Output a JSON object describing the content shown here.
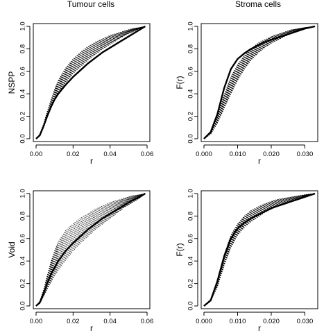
{
  "column_titles": [
    "Tumour cells",
    "Stroma cells"
  ],
  "chart_data": [
    {
      "type": "line",
      "title": "Tumour cells",
      "xlabel": "r",
      "ylabel": "NSPP",
      "xlim": [
        0,
        0.06
      ],
      "ylim": [
        0,
        1
      ],
      "xticks": [
        0.0,
        0.02,
        0.04,
        0.06
      ],
      "xtick_labels": [
        "0.00",
        "0.02",
        "0.04",
        "0.06"
      ],
      "yticks": [
        0.0,
        0.2,
        0.4,
        0.6,
        0.8,
        1.0
      ],
      "ytick_labels": [
        "0.0",
        "0.2",
        "0.4",
        "0.6",
        "0.8",
        "1.0"
      ],
      "grid": false,
      "legend": "none",
      "series": [
        {
          "role": "observed",
          "x": [
            0.0,
            0.002,
            0.004,
            0.006,
            0.008,
            0.01,
            0.012,
            0.016,
            0.02,
            0.024,
            0.028,
            0.032,
            0.036,
            0.04,
            0.044,
            0.048,
            0.052,
            0.056,
            0.059
          ],
          "y": [
            0.0,
            0.03,
            0.11,
            0.2,
            0.28,
            0.35,
            0.4,
            0.48,
            0.55,
            0.61,
            0.67,
            0.72,
            0.77,
            0.81,
            0.85,
            0.89,
            0.93,
            0.97,
            1.0
          ]
        },
        {
          "role": "simulation-envelope",
          "x": [
            0.0,
            0.002,
            0.004,
            0.006,
            0.008,
            0.01,
            0.012,
            0.016,
            0.02,
            0.024,
            0.028,
            0.032,
            0.036,
            0.04,
            0.044,
            0.048,
            0.052,
            0.056,
            0.059
          ],
          "y_lower": [
            0.0,
            0.03,
            0.1,
            0.19,
            0.27,
            0.35,
            0.41,
            0.5,
            0.58,
            0.64,
            0.7,
            0.75,
            0.8,
            0.84,
            0.88,
            0.92,
            0.95,
            0.98,
            1.0
          ],
          "y_upper": [
            0.0,
            0.04,
            0.13,
            0.24,
            0.34,
            0.44,
            0.52,
            0.63,
            0.71,
            0.77,
            0.82,
            0.86,
            0.89,
            0.92,
            0.94,
            0.96,
            0.98,
            0.99,
            1.0
          ],
          "count": 19
        }
      ]
    },
    {
      "type": "line",
      "title": "Stroma cells",
      "xlabel": "r",
      "ylabel": "F(r)",
      "xlim": [
        0,
        0.033
      ],
      "ylim": [
        0,
        1
      ],
      "xticks": [
        0.0,
        0.01,
        0.02,
        0.03
      ],
      "xtick_labels": [
        "0.000",
        "0.010",
        "0.020",
        "0.030"
      ],
      "yticks": [
        0.0,
        0.2,
        0.4,
        0.6,
        0.8,
        1.0
      ],
      "ytick_labels": [
        "0.0",
        "0.2",
        "0.4",
        "0.6",
        "0.8",
        "1.0"
      ],
      "grid": false,
      "legend": "none",
      "series": [
        {
          "role": "observed",
          "x": [
            0.0,
            0.002,
            0.004,
            0.006,
            0.008,
            0.01,
            0.012,
            0.014,
            0.016,
            0.018,
            0.02,
            0.022,
            0.024,
            0.026,
            0.028,
            0.03,
            0.033
          ],
          "y": [
            0.0,
            0.06,
            0.22,
            0.45,
            0.62,
            0.71,
            0.76,
            0.8,
            0.83,
            0.86,
            0.88,
            0.9,
            0.92,
            0.94,
            0.96,
            0.98,
            1.0
          ]
        },
        {
          "role": "simulation-envelope",
          "x": [
            0.0,
            0.002,
            0.004,
            0.006,
            0.008,
            0.01,
            0.012,
            0.014,
            0.016,
            0.018,
            0.02,
            0.022,
            0.024,
            0.026,
            0.028,
            0.03,
            0.033
          ],
          "y_lower": [
            0.0,
            0.04,
            0.14,
            0.27,
            0.4,
            0.52,
            0.62,
            0.7,
            0.76,
            0.81,
            0.85,
            0.88,
            0.91,
            0.94,
            0.96,
            0.98,
            1.0
          ],
          "y_upper": [
            0.0,
            0.06,
            0.21,
            0.39,
            0.55,
            0.66,
            0.74,
            0.8,
            0.85,
            0.88,
            0.91,
            0.93,
            0.95,
            0.97,
            0.98,
            0.99,
            1.0
          ],
          "count": 19
        }
      ]
    },
    {
      "type": "line",
      "title": "",
      "xlabel": "r",
      "ylabel": "Void",
      "xlim": [
        0,
        0.06
      ],
      "ylim": [
        0,
        1
      ],
      "xticks": [
        0.0,
        0.02,
        0.04,
        0.06
      ],
      "xtick_labels": [
        "0.00",
        "0.02",
        "0.04",
        "0.06"
      ],
      "yticks": [
        0.0,
        0.2,
        0.4,
        0.6,
        0.8,
        1.0
      ],
      "ytick_labels": [
        "0.0",
        "0.2",
        "0.4",
        "0.6",
        "0.8",
        "1.0"
      ],
      "grid": false,
      "legend": "none",
      "series": [
        {
          "role": "observed",
          "x": [
            0.0,
            0.002,
            0.004,
            0.006,
            0.008,
            0.01,
            0.012,
            0.016,
            0.02,
            0.024,
            0.028,
            0.032,
            0.036,
            0.04,
            0.044,
            0.048,
            0.052,
            0.056,
            0.059
          ],
          "y": [
            0.0,
            0.03,
            0.11,
            0.2,
            0.28,
            0.34,
            0.4,
            0.49,
            0.56,
            0.62,
            0.68,
            0.73,
            0.78,
            0.82,
            0.86,
            0.9,
            0.94,
            0.97,
            1.0
          ]
        },
        {
          "role": "simulation-envelope",
          "x": [
            0.0,
            0.002,
            0.004,
            0.006,
            0.008,
            0.01,
            0.012,
            0.016,
            0.02,
            0.024,
            0.028,
            0.032,
            0.036,
            0.04,
            0.044,
            0.048,
            0.052,
            0.056,
            0.059
          ],
          "y_lower": [
            0.0,
            0.02,
            0.08,
            0.15,
            0.21,
            0.27,
            0.32,
            0.41,
            0.49,
            0.56,
            0.62,
            0.68,
            0.73,
            0.78,
            0.83,
            0.88,
            0.92,
            0.96,
            1.0
          ],
          "y_upper": [
            0.0,
            0.04,
            0.14,
            0.27,
            0.39,
            0.49,
            0.57,
            0.67,
            0.73,
            0.78,
            0.82,
            0.86,
            0.89,
            0.92,
            0.94,
            0.96,
            0.98,
            0.99,
            1.0
          ],
          "count": 19
        }
      ]
    },
    {
      "type": "line",
      "title": "",
      "xlabel": "r",
      "ylabel": "F(r)",
      "xlim": [
        0,
        0.033
      ],
      "ylim": [
        0,
        1
      ],
      "xticks": [
        0.0,
        0.01,
        0.02,
        0.03
      ],
      "xtick_labels": [
        "0.000",
        "0.010",
        "0.020",
        "0.030"
      ],
      "yticks": [
        0.0,
        0.2,
        0.4,
        0.6,
        0.8,
        1.0
      ],
      "ytick_labels": [
        "0.0",
        "0.2",
        "0.4",
        "0.6",
        "0.8",
        "1.0"
      ],
      "grid": false,
      "legend": "none",
      "series": [
        {
          "role": "observed",
          "x": [
            0.0,
            0.002,
            0.004,
            0.006,
            0.008,
            0.01,
            0.012,
            0.014,
            0.016,
            0.018,
            0.02,
            0.022,
            0.024,
            0.026,
            0.028,
            0.03,
            0.033
          ],
          "y": [
            0.0,
            0.05,
            0.22,
            0.44,
            0.6,
            0.69,
            0.74,
            0.78,
            0.81,
            0.84,
            0.87,
            0.89,
            0.91,
            0.93,
            0.95,
            0.97,
            1.0
          ]
        },
        {
          "role": "simulation-envelope",
          "x": [
            0.0,
            0.002,
            0.004,
            0.006,
            0.008,
            0.01,
            0.012,
            0.014,
            0.016,
            0.018,
            0.02,
            0.022,
            0.024,
            0.026,
            0.028,
            0.03,
            0.033
          ],
          "y_lower": [
            0.0,
            0.04,
            0.17,
            0.36,
            0.52,
            0.63,
            0.7,
            0.75,
            0.79,
            0.83,
            0.86,
            0.89,
            0.91,
            0.93,
            0.95,
            0.97,
            1.0
          ],
          "y_upper": [
            0.0,
            0.06,
            0.24,
            0.46,
            0.63,
            0.73,
            0.8,
            0.85,
            0.88,
            0.91,
            0.93,
            0.95,
            0.96,
            0.97,
            0.98,
            0.99,
            1.0
          ],
          "count": 19
        }
      ]
    }
  ]
}
